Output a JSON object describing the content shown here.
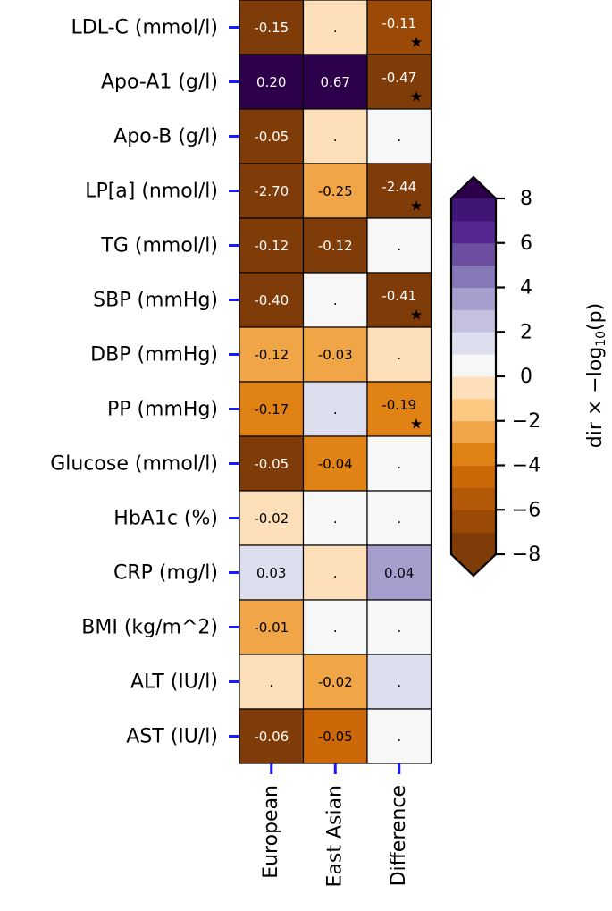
{
  "chart_data": {
    "type": "heatmap",
    "rows": [
      "LDL-C (mmol/l)",
      "Apo-A1 (g/l)",
      "Apo-B (g/l)",
      "LP[a] (nmol/l)",
      "TG (mmol/l)",
      "SBP (mmHg)",
      "DBP (mmHg)",
      "PP (mmHg)",
      "Glucose (mmol/l)",
      "HbA1c (%)",
      "CRP (mg/l)",
      "BMI (kg/m^2)",
      "ALT (IU/l)",
      "AST (IU/l)"
    ],
    "columns": [
      "European",
      "East Asian",
      "Difference"
    ],
    "cell_text": [
      [
        "-0.15",
        ".",
        "-0.11"
      ],
      [
        "0.20",
        "0.67",
        "-0.47"
      ],
      [
        "-0.05",
        ".",
        "."
      ],
      [
        "-2.70",
        "-0.25",
        "-2.44"
      ],
      [
        "-0.12",
        "-0.12",
        "."
      ],
      [
        "-0.40",
        ".",
        "-0.41"
      ],
      [
        "-0.12",
        "-0.03",
        "."
      ],
      [
        "-0.17",
        ".",
        "-0.19"
      ],
      [
        "-0.05",
        "-0.04",
        "."
      ],
      [
        "-0.02",
        ".",
        "."
      ],
      [
        "0.03",
        ".",
        "0.04"
      ],
      [
        "-0.01",
        ".",
        "."
      ],
      [
        ".",
        "-0.02",
        "."
      ],
      [
        "-0.06",
        "-0.05",
        "."
      ]
    ],
    "signed_log10p": [
      [
        -7.5,
        -1.0,
        -7.0
      ],
      [
        9.0,
        9.0,
        -7.5
      ],
      [
        -7.5,
        -1.0,
        0.0
      ],
      [
        -7.5,
        -3.0,
        -7.5
      ],
      [
        -7.5,
        -7.5,
        0.0
      ],
      [
        -7.5,
        0.0,
        -7.5
      ],
      [
        -2.5,
        -2.5,
        -1.0
      ],
      [
        -3.5,
        1.5,
        -3.5
      ],
      [
        -7.5,
        -3.5,
        0.0
      ],
      [
        -1.0,
        0.0,
        0.0
      ],
      [
        1.5,
        -1.0,
        3.5
      ],
      [
        -2.5,
        0.0,
        0.0
      ],
      [
        -1.0,
        -2.5,
        1.5
      ],
      [
        -7.5,
        -4.5,
        0.0
      ]
    ],
    "significant_star": [
      [
        false,
        false,
        true
      ],
      [
        false,
        false,
        true
      ],
      [
        false,
        false,
        false
      ],
      [
        false,
        false,
        true
      ],
      [
        false,
        false,
        false
      ],
      [
        false,
        false,
        true
      ],
      [
        false,
        false,
        false
      ],
      [
        false,
        false,
        true
      ],
      [
        false,
        false,
        false
      ],
      [
        false,
        false,
        false
      ],
      [
        false,
        false,
        false
      ],
      [
        false,
        false,
        false
      ],
      [
        false,
        false,
        false
      ],
      [
        false,
        false,
        false
      ]
    ],
    "star_symbol": "★",
    "colorbar": {
      "label_prefix": "dir × −log",
      "label_sub": "10",
      "label_suffix": "(p)",
      "range": [
        -8,
        8
      ],
      "ticks": [
        8,
        6,
        4,
        2,
        0,
        -2,
        -4,
        -6,
        -8
      ],
      "tick_labels": [
        "8",
        "6",
        "4",
        "2",
        "0",
        "−2",
        "−4",
        "−6",
        "−8"
      ],
      "extend": "both",
      "bins": [
        {
          "from": -8,
          "to": -7,
          "color": "#7f3b08"
        },
        {
          "from": -7,
          "to": -6,
          "color": "#9a4a06"
        },
        {
          "from": -6,
          "to": -5,
          "color": "#b35806"
        },
        {
          "from": -5,
          "to": -4,
          "color": "#cd6808"
        },
        {
          "from": -4,
          "to": -3,
          "color": "#e08214"
        },
        {
          "from": -3,
          "to": -2,
          "color": "#f0a546"
        },
        {
          "from": -2,
          "to": -1,
          "color": "#fdc882"
        },
        {
          "from": -1,
          "to": 0,
          "color": "#fde0b9"
        },
        {
          "from": 0,
          "to": 1,
          "color": "#f7f7f7"
        },
        {
          "from": 1,
          "to": 2,
          "color": "#dedfee"
        },
        {
          "from": 2,
          "to": 3,
          "color": "#c3c1df"
        },
        {
          "from": 3,
          "to": 4,
          "color": "#a69ecd"
        },
        {
          "from": 4,
          "to": 5,
          "color": "#8677b7"
        },
        {
          "from": 5,
          "to": 6,
          "color": "#6d4f9f"
        },
        {
          "from": 6,
          "to": 7,
          "color": "#54278f"
        },
        {
          "from": 7,
          "to": 8,
          "color": "#3f1575"
        }
      ],
      "under_color": "#7f3b08",
      "over_color": "#2d004b"
    },
    "tick_color": "#1a1aff"
  }
}
